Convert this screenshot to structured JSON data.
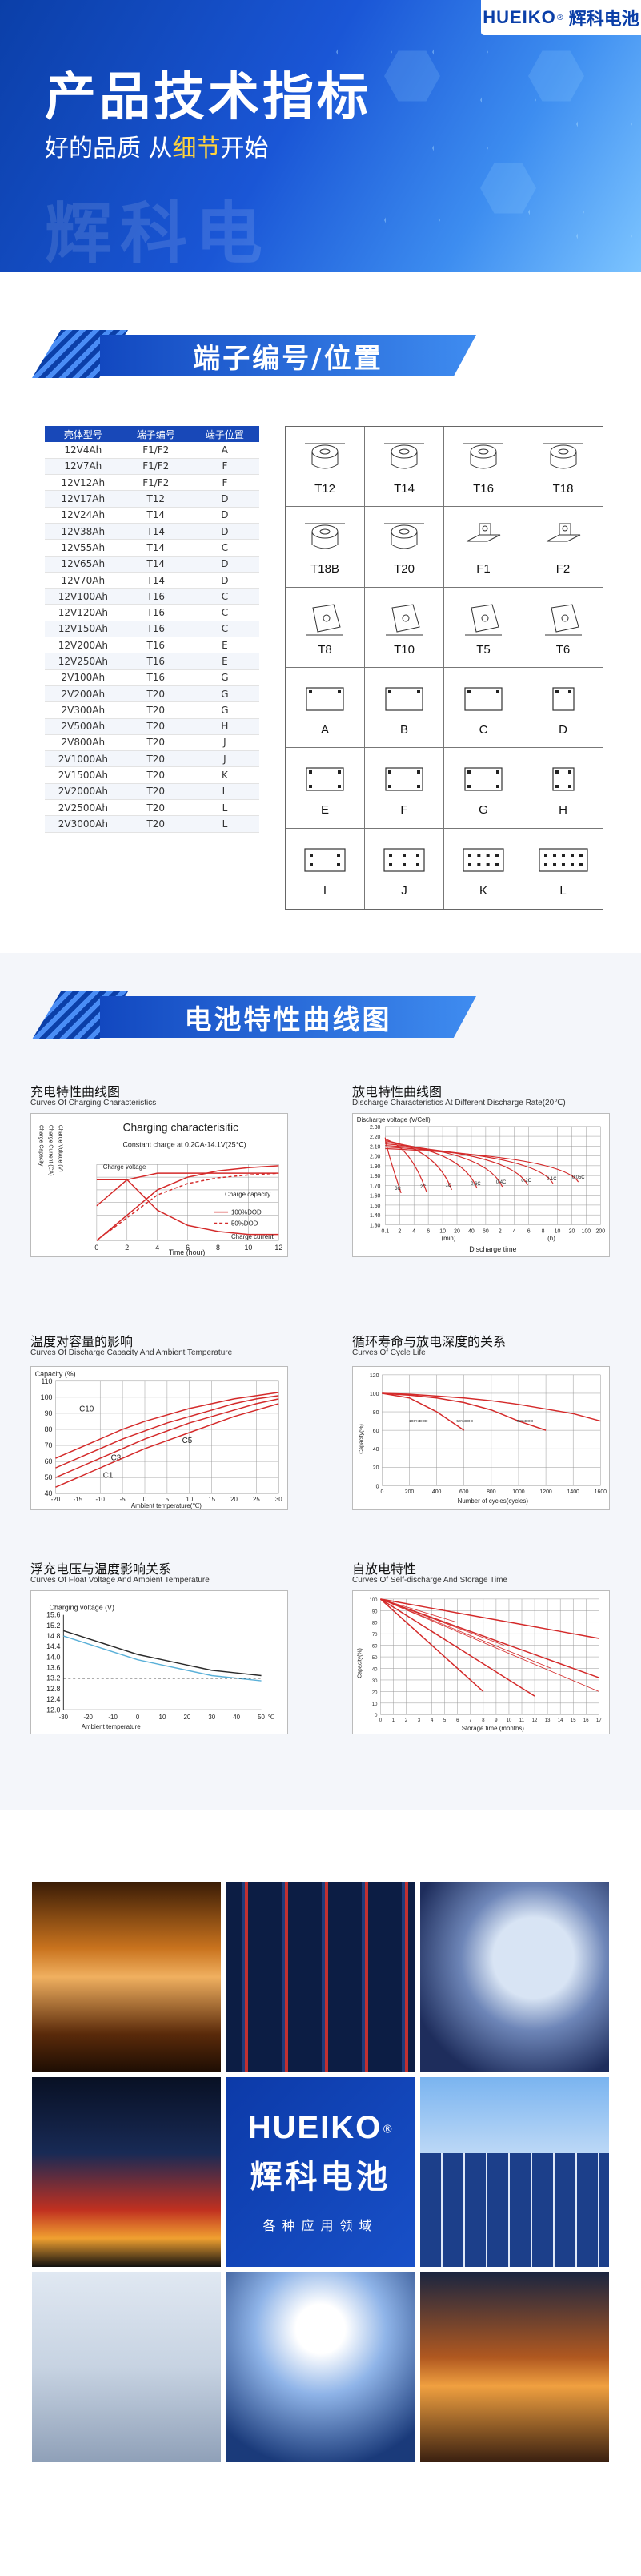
{
  "banner": {
    "brand_en": "HUEIKO",
    "brand_reg": "®",
    "brand_cn": "辉科电池",
    "title": "产品技术指标",
    "subtitle_a": "好的品质 从",
    "subtitle_hl": "细节",
    "subtitle_b": "开始",
    "watermark": "辉科电"
  },
  "section_terminals": {
    "title": "端子编号/位置"
  },
  "terminal_table": {
    "headers": [
      "壳体型号",
      "端子编号",
      "端子位置"
    ],
    "rows": [
      [
        "12V4Ah",
        "F1/F2",
        "A"
      ],
      [
        "12V7Ah",
        "F1/F2",
        "F"
      ],
      [
        "12V12Ah",
        "F1/F2",
        "F"
      ],
      [
        "12V17Ah",
        "T12",
        "D"
      ],
      [
        "12V24Ah",
        "T14",
        "D"
      ],
      [
        "12V38Ah",
        "T14",
        "D"
      ],
      [
        "12V55Ah",
        "T14",
        "C"
      ],
      [
        "12V65Ah",
        "T14",
        "D"
      ],
      [
        "12V70Ah",
        "T14",
        "D"
      ],
      [
        "12V100Ah",
        "T16",
        "C"
      ],
      [
        "12V120Ah",
        "T16",
        "C"
      ],
      [
        "12V150Ah",
        "T16",
        "C"
      ],
      [
        "12V200Ah",
        "T16",
        "E"
      ],
      [
        "12V250Ah",
        "T16",
        "E"
      ],
      [
        "2V100Ah",
        "T16",
        "G"
      ],
      [
        "2V200Ah",
        "T20",
        "G"
      ],
      [
        "2V300Ah",
        "T20",
        "G"
      ],
      [
        "2V500Ah",
        "T20",
        "H"
      ],
      [
        "2V800Ah",
        "T20",
        "J"
      ],
      [
        "2V1000Ah",
        "T20",
        "J"
      ],
      [
        "2V1500Ah",
        "T20",
        "K"
      ],
      [
        "2V2000Ah",
        "T20",
        "L"
      ],
      [
        "2V2500Ah",
        "T20",
        "L"
      ],
      [
        "2V3000Ah",
        "T20",
        "L"
      ]
    ]
  },
  "terminal_types": [
    "T12",
    "T14",
    "T16",
    "T18",
    "T18B",
    "T20",
    "F1",
    "F2",
    "T8",
    "T10",
    "T5",
    "T6"
  ],
  "positions": [
    "A",
    "B",
    "C",
    "D",
    "E",
    "F",
    "G",
    "H",
    "I",
    "J",
    "K",
    "L"
  ],
  "section_curves": {
    "title": "电池特性曲线图"
  },
  "curves": {
    "charging": {
      "title_cn": "充电特性曲线图",
      "title_en": "Curves Of Charging Characteristics",
      "chart_title": "Charging characterisitic",
      "chart_sub": "Constant charge at 0.2CA-14.1V(25℃)",
      "xlabel": "Time (hour)",
      "y_label_1": "Charge Capacity",
      "y_label_2": "Charge Current (CA)",
      "y_label_3": "Charge Voltage (V)",
      "legend_1": "100%DOD",
      "legend_2": "50%DOD",
      "ann_voltage": "Charge voltage",
      "ann_capacity": "Charge capacity",
      "ann_current": "Charge current"
    },
    "discharge": {
      "title_cn": "放电特性曲线图",
      "title_en": "Discharge Characteristics At Different Discharge Rate(20℃)",
      "ylabel": "Discharge voltage (V/Cell)",
      "xlabel": "Discharge time",
      "unit_min": "(min)",
      "unit_h": "(h)"
    },
    "temperature": {
      "title_cn": "温度对容量的影响",
      "title_en": "Curves Of Discharge Capacity And Ambient Temperature",
      "ylabel": "Capacity (%)",
      "xlabel": "Ambient temperature(℃)"
    },
    "cycle": {
      "title_cn": "循环寿命与放电深度的关系",
      "title_en": "Curves Of Cycle Life",
      "ylabel": "Capacity(%)",
      "xlabel": "Number of cycles(cycles)",
      "dod_1": "100%DOD",
      "dod_2": "50%DOD",
      "dod_3": "30%DOD"
    },
    "float": {
      "title_cn": "浮充电压与温度影响关系",
      "title_en": "Curves Of Float Voltage And Ambient Temperature",
      "ylabel": "Charging voltage (V)",
      "xlabel": "Ambient temperature",
      "unit": "℃"
    },
    "selfdis": {
      "title_cn": "自放电特性",
      "title_en": "Curves Of Self-discharge And Storage Time",
      "ylabel": "Capacity(%)",
      "xlabel": "Storage time (months)"
    }
  },
  "chart_data": [
    {
      "type": "line",
      "title": "Charging characterisitic",
      "xlabel": "Time (hour)",
      "x": [
        0,
        2,
        4,
        6,
        8,
        10,
        12
      ],
      "series": [
        {
          "name": "Charge voltage",
          "values": [
            12.6,
            13.8,
            14.1,
            14.1,
            14.1,
            14.1,
            14.1
          ]
        },
        {
          "name": "Charge capacity",
          "values": [
            0,
            40,
            80,
            100,
            110,
            115,
            118
          ]
        },
        {
          "name": "Charge current",
          "values": [
            0.2,
            0.2,
            0.1,
            0.05,
            0.03,
            0.02,
            0.02
          ]
        }
      ],
      "xlim": [
        0,
        12
      ]
    },
    {
      "type": "line",
      "title": "Discharge Characteristics At Different Discharge Rate(20℃)",
      "xlabel": "Discharge time",
      "ylabel": "Discharge voltage (V/Cell)",
      "yticks": [
        1.3,
        1.4,
        1.5,
        1.6,
        1.7,
        1.8,
        1.9,
        2.0,
        2.1,
        2.2,
        2.3
      ],
      "xticks": [
        "0.1",
        "2",
        "4",
        "6",
        "10",
        "20",
        "40",
        "60",
        "2",
        "4",
        "6",
        "8",
        "10",
        "20",
        "100",
        "200"
      ],
      "series_labels": [
        "3C",
        "2C",
        "1C",
        "0.6C",
        "0.4C",
        "0.2C",
        "0.1C",
        "0.05C"
      ]
    },
    {
      "type": "line",
      "title": "Curves Of Discharge Capacity And Ambient Temperature",
      "xlabel": "Ambient temperature(℃)",
      "ylabel": "Capacity (%)",
      "x": [
        -20,
        -15,
        -10,
        -5,
        0,
        5,
        10,
        15,
        20,
        25,
        30
      ],
      "ylim": [
        40,
        110
      ],
      "series": [
        {
          "name": "C10",
          "values": [
            62,
            68,
            74,
            80,
            85,
            89,
            93,
            96,
            99,
            101,
            103
          ]
        },
        {
          "name": "C5",
          "values": [
            56,
            62,
            68,
            74,
            79,
            84,
            88,
            92,
            96,
            99,
            101
          ]
        },
        {
          "name": "C3",
          "values": [
            50,
            56,
            62,
            68,
            74,
            79,
            84,
            88,
            92,
            96,
            99
          ]
        },
        {
          "name": "C1",
          "values": [
            44,
            50,
            56,
            62,
            68,
            73,
            78,
            83,
            88,
            92,
            96
          ]
        }
      ]
    },
    {
      "type": "line",
      "title": "Curves Of Cycle Life",
      "xlabel": "Number of cycles(cycles)",
      "ylabel": "Capacity(%)",
      "x": [
        0,
        200,
        400,
        600,
        800,
        1000,
        1200,
        1400,
        1600
      ],
      "ylim": [
        0,
        120
      ],
      "series": [
        {
          "name": "100%DOD",
          "values": [
            100,
            95,
            80,
            60,
            null,
            null,
            null,
            null,
            null
          ]
        },
        {
          "name": "50%DOD",
          "values": [
            100,
            98,
            95,
            90,
            82,
            70,
            60,
            null,
            null
          ]
        },
        {
          "name": "30%DOD",
          "values": [
            100,
            99,
            97,
            95,
            92,
            88,
            83,
            78,
            70
          ]
        }
      ]
    },
    {
      "type": "line",
      "title": "Curves Of Float Voltage And Ambient Temperature",
      "xlabel": "Ambient temperature",
      "ylabel": "Charging voltage (V)",
      "x": [
        -30,
        -20,
        -10,
        0,
        10,
        20,
        30,
        40,
        50
      ],
      "ylim": [
        12.0,
        15.6
      ],
      "series": [
        {
          "values": [
            15.0,
            14.7,
            14.4,
            14.1,
            13.9,
            13.7,
            13.5,
            13.4,
            13.3
          ]
        },
        {
          "values": [
            14.8,
            14.5,
            14.2,
            13.9,
            13.7,
            13.5,
            13.3,
            13.2,
            13.1
          ]
        }
      ]
    },
    {
      "type": "line",
      "title": "Curves Of Self-discharge And Storage Time",
      "xlabel": "Storage time (months)",
      "ylabel": "Capacity(%)",
      "x": [
        0,
        2,
        4,
        6,
        8,
        10,
        12,
        14,
        16,
        17
      ],
      "ylim": [
        0,
        100
      ],
      "series": [
        {
          "values": [
            100,
            96,
            92,
            88,
            84,
            80,
            76,
            72,
            68,
            66
          ]
        },
        {
          "values": [
            100,
            92,
            84,
            76,
            68,
            60,
            52,
            44,
            36,
            32
          ]
        },
        {
          "values": [
            100,
            86,
            72,
            58,
            44,
            30,
            16,
            null,
            null,
            null
          ]
        },
        {
          "values": [
            100,
            80,
            60,
            40,
            20,
            null,
            null,
            null,
            null,
            null
          ]
        }
      ]
    }
  ],
  "applications": {
    "logo_en": "HUEIKO",
    "logo_reg": "®",
    "logo_cn": "辉科电池",
    "tagline": "各种应用领域",
    "tiles": [
      "rail",
      "server",
      "robot",
      "fire",
      "logo",
      "solar",
      "grid",
      "surgery",
      "port"
    ]
  }
}
